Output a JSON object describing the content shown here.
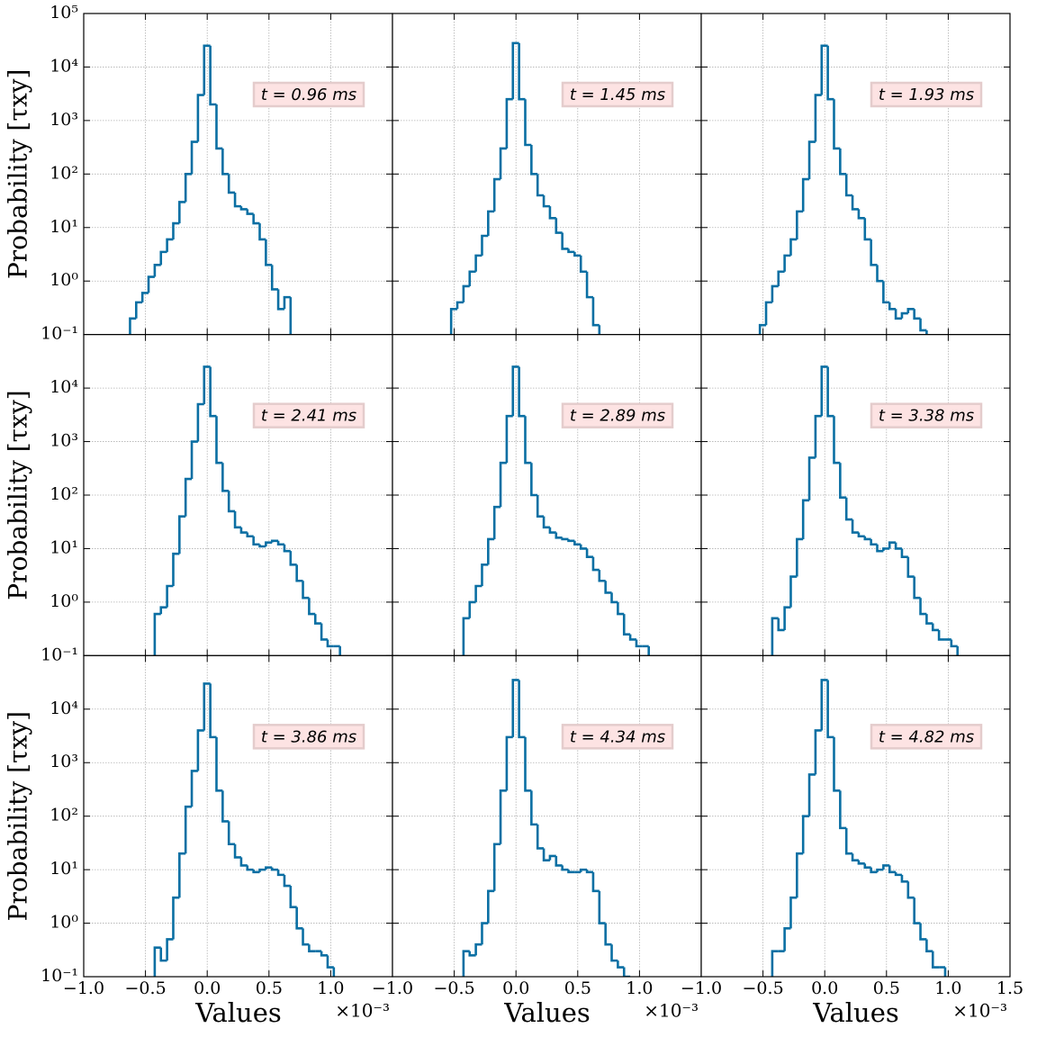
{
  "chart_data": [
    {
      "type": "histogram",
      "annotation": "t = 0.96 ms",
      "color": "#0a6fa3",
      "log_y": true,
      "grid": true,
      "xlim": [
        -1.0,
        1.5
      ],
      "ylim": [
        0.1,
        100000
      ],
      "ylabel": "Probability [τxy]",
      "yticks": [
        {
          "value": 0.1,
          "label": "10⁻¹"
        },
        {
          "value": 1,
          "label": "10⁰"
        },
        {
          "value": 10,
          "label": "10¹"
        },
        {
          "value": 100,
          "label": "10²"
        },
        {
          "value": 1000,
          "label": "10³"
        },
        {
          "value": 10000,
          "label": "10⁴"
        },
        {
          "value": 100000,
          "label": "10⁵"
        }
      ],
      "bins": [
        -0.625,
        -0.575,
        -0.525,
        -0.475,
        -0.425,
        -0.375,
        -0.325,
        -0.275,
        -0.225,
        -0.175,
        -0.125,
        -0.075,
        -0.025,
        0.025,
        0.075,
        0.125,
        0.175,
        0.225,
        0.275,
        0.325,
        0.375,
        0.425,
        0.475,
        0.525,
        0.575,
        0.625,
        0.675,
        0.725,
        0.775,
        0.825,
        0.875,
        0.925,
        0.975,
        1.025,
        1.075,
        1.125,
        1.175
      ],
      "values": [
        0.2,
        0.4,
        0.6,
        1.2,
        2,
        3.5,
        6,
        12,
        30,
        100,
        400,
        3000,
        25000,
        2000,
        300,
        100,
        45,
        25,
        22,
        18,
        12,
        6,
        2,
        0.7,
        0.3,
        0.5,
        0,
        0,
        0,
        0,
        0,
        0,
        0,
        0,
        0,
        0
      ]
    },
    {
      "type": "histogram",
      "annotation": "t = 1.45 ms",
      "color": "#0a6fa3",
      "log_y": true,
      "grid": true,
      "xlim": [
        -1.0,
        1.5
      ],
      "ylim": [
        0.1,
        100000
      ],
      "bins": [
        -0.625,
        -0.575,
        -0.525,
        -0.475,
        -0.425,
        -0.375,
        -0.325,
        -0.275,
        -0.225,
        -0.175,
        -0.125,
        -0.075,
        -0.025,
        0.025,
        0.075,
        0.125,
        0.175,
        0.225,
        0.275,
        0.325,
        0.375,
        0.425,
        0.475,
        0.525,
        0.575,
        0.625,
        0.675,
        0.725,
        0.775,
        0.825,
        0.875,
        0.925,
        0.975,
        1.025,
        1.075,
        1.125,
        1.175
      ],
      "values": [
        0,
        0,
        0.3,
        0.4,
        0.8,
        1.5,
        3,
        7,
        20,
        80,
        300,
        2500,
        28000,
        2500,
        350,
        100,
        40,
        25,
        15,
        8,
        4,
        3.5,
        3,
        1.5,
        0.5,
        0.15,
        0,
        0,
        0,
        0,
        0,
        0,
        0,
        0,
        0,
        0
      ]
    },
    {
      "type": "histogram",
      "annotation": "t = 1.93 ms",
      "color": "#0a6fa3",
      "log_y": true,
      "grid": true,
      "xlim": [
        -1.0,
        1.5
      ],
      "ylim": [
        0.1,
        100000
      ],
      "bins": [
        -0.625,
        -0.575,
        -0.525,
        -0.475,
        -0.425,
        -0.375,
        -0.325,
        -0.275,
        -0.225,
        -0.175,
        -0.125,
        -0.075,
        -0.025,
        0.025,
        0.075,
        0.125,
        0.175,
        0.225,
        0.275,
        0.325,
        0.375,
        0.425,
        0.475,
        0.525,
        0.575,
        0.625,
        0.675,
        0.725,
        0.775,
        0.825,
        0.875,
        0.925,
        0.975,
        1.025,
        1.075,
        1.125,
        1.175
      ],
      "values": [
        0,
        0,
        0.15,
        0.4,
        0.8,
        1.5,
        3,
        6,
        20,
        80,
        400,
        3000,
        25000,
        2500,
        300,
        100,
        40,
        22,
        15,
        6,
        2,
        1,
        0.4,
        0.3,
        0.2,
        0.25,
        0.3,
        0.2,
        0.12,
        0,
        0,
        0,
        0,
        0,
        0,
        0
      ]
    },
    {
      "type": "histogram",
      "annotation": "t = 2.41 ms",
      "color": "#0a6fa3",
      "log_y": true,
      "grid": true,
      "xlim": [
        -1.0,
        1.5
      ],
      "ylim": [
        0.1,
        100000
      ],
      "ylabel": "Probability [τxy]",
      "yticks": [
        {
          "value": 0.1,
          "label": "10⁻¹"
        },
        {
          "value": 1,
          "label": "10⁰"
        },
        {
          "value": 10,
          "label": "10¹"
        },
        {
          "value": 100,
          "label": "10²"
        },
        {
          "value": 1000,
          "label": "10³"
        },
        {
          "value": 10000,
          "label": "10⁴"
        }
      ],
      "bins": [
        -0.625,
        -0.575,
        -0.525,
        -0.475,
        -0.425,
        -0.375,
        -0.325,
        -0.275,
        -0.225,
        -0.175,
        -0.125,
        -0.075,
        -0.025,
        0.025,
        0.075,
        0.125,
        0.175,
        0.225,
        0.275,
        0.325,
        0.375,
        0.425,
        0.475,
        0.525,
        0.575,
        0.625,
        0.675,
        0.725,
        0.775,
        0.825,
        0.875,
        0.925,
        0.975,
        1.025,
        1.075,
        1.125,
        1.175
      ],
      "values": [
        0,
        0,
        0,
        0,
        0.6,
        0.8,
        2,
        8,
        40,
        200,
        1000,
        5000,
        25000,
        3000,
        400,
        120,
        50,
        25,
        20,
        17,
        12,
        11,
        13,
        14,
        12,
        9,
        5,
        2.5,
        1.2,
        0.6,
        0.4,
        0.2,
        0.15,
        0.15,
        0,
        0
      ]
    },
    {
      "type": "histogram",
      "annotation": "t = 2.89 ms",
      "color": "#0a6fa3",
      "log_y": true,
      "grid": true,
      "xlim": [
        -1.0,
        1.5
      ],
      "ylim": [
        0.1,
        100000
      ],
      "bins": [
        -0.625,
        -0.575,
        -0.525,
        -0.475,
        -0.425,
        -0.375,
        -0.325,
        -0.275,
        -0.225,
        -0.175,
        -0.125,
        -0.075,
        -0.025,
        0.025,
        0.075,
        0.125,
        0.175,
        0.225,
        0.275,
        0.325,
        0.375,
        0.425,
        0.475,
        0.525,
        0.575,
        0.625,
        0.675,
        0.725,
        0.775,
        0.825,
        0.875,
        0.925,
        0.975,
        1.025,
        1.075,
        1.125,
        1.175
      ],
      "values": [
        0,
        0,
        0,
        0,
        0.5,
        1,
        2,
        5,
        15,
        60,
        400,
        3000,
        25000,
        3000,
        400,
        100,
        40,
        25,
        20,
        16,
        15,
        14,
        12,
        10,
        7,
        4,
        2.5,
        1.5,
        1,
        0.6,
        0.25,
        0.2,
        0.15,
        0.15,
        0,
        0
      ]
    },
    {
      "type": "histogram",
      "annotation": "t = 3.38 ms",
      "color": "#0a6fa3",
      "log_y": true,
      "grid": true,
      "xlim": [
        -1.0,
        1.5
      ],
      "ylim": [
        0.1,
        100000
      ],
      "bins": [
        -0.625,
        -0.575,
        -0.525,
        -0.475,
        -0.425,
        -0.375,
        -0.325,
        -0.275,
        -0.225,
        -0.175,
        -0.125,
        -0.075,
        -0.025,
        0.025,
        0.075,
        0.125,
        0.175,
        0.225,
        0.275,
        0.325,
        0.375,
        0.425,
        0.475,
        0.525,
        0.575,
        0.625,
        0.675,
        0.725,
        0.775,
        0.825,
        0.875,
        0.925,
        0.975,
        1.025,
        1.075,
        1.125,
        1.175
      ],
      "values": [
        0,
        0,
        0,
        0,
        0.5,
        0.3,
        0.8,
        3,
        15,
        80,
        500,
        3000,
        25000,
        3000,
        400,
        90,
        35,
        20,
        17,
        15,
        12,
        9,
        10,
        13,
        10,
        7,
        3,
        1.2,
        0.6,
        0.4,
        0.3,
        0.2,
        0.2,
        0.15,
        0,
        0
      ]
    },
    {
      "type": "histogram",
      "annotation": "t = 3.86 ms",
      "color": "#0a6fa3",
      "log_y": true,
      "grid": true,
      "xlim": [
        -1.0,
        1.5
      ],
      "ylim": [
        0.1,
        100000
      ],
      "ylabel": "Probability [τxy]",
      "xlabel": "Values",
      "x_offset_label": "×10⁻³",
      "yticks": [
        {
          "value": 0.1,
          "label": "10⁻¹"
        },
        {
          "value": 1,
          "label": "10⁰"
        },
        {
          "value": 10,
          "label": "10¹"
        },
        {
          "value": 100,
          "label": "10²"
        },
        {
          "value": 1000,
          "label": "10³"
        },
        {
          "value": 10000,
          "label": "10⁴"
        }
      ],
      "xticks": [
        {
          "value": -1.0,
          "label": "−1.0"
        },
        {
          "value": -0.5,
          "label": "−0.5"
        },
        {
          "value": 0,
          "label": "0.0"
        },
        0.5,
        {
          "value": 1.0,
          "label": "1.0"
        }
      ],
      "bins": [
        -0.625,
        -0.575,
        -0.525,
        -0.475,
        -0.425,
        -0.375,
        -0.325,
        -0.275,
        -0.225,
        -0.175,
        -0.125,
        -0.075,
        -0.025,
        0.025,
        0.075,
        0.125,
        0.175,
        0.225,
        0.275,
        0.325,
        0.375,
        0.425,
        0.475,
        0.525,
        0.575,
        0.625,
        0.675,
        0.725,
        0.775,
        0.825,
        0.875,
        0.925,
        0.975,
        1.025,
        1.075,
        1.125,
        1.175
      ],
      "values": [
        0,
        0,
        0,
        0,
        0.35,
        0.2,
        0.5,
        3,
        20,
        150,
        700,
        4000,
        30000,
        3000,
        300,
        80,
        30,
        17,
        12,
        10,
        9,
        10,
        11,
        10,
        8,
        5,
        2,
        0.8,
        0.4,
        0.3,
        0.3,
        0.25,
        0.15,
        0,
        0,
        0
      ]
    },
    {
      "type": "histogram",
      "annotation": "t = 4.34 ms",
      "color": "#0a6fa3",
      "log_y": true,
      "grid": true,
      "xlim": [
        -1.0,
        1.5
      ],
      "ylim": [
        0.1,
        100000
      ],
      "xlabel": "Values",
      "x_offset_label": "×10⁻³",
      "xticks": [
        {
          "value": -1.0,
          "label": "−1.0"
        },
        {
          "value": -0.5,
          "label": "−0.5"
        },
        {
          "value": 0,
          "label": "0.0"
        },
        0.5,
        {
          "value": 1.0,
          "label": "1.0"
        }
      ],
      "bins": [
        -0.625,
        -0.575,
        -0.525,
        -0.475,
        -0.425,
        -0.375,
        -0.325,
        -0.275,
        -0.225,
        -0.175,
        -0.125,
        -0.075,
        -0.025,
        0.025,
        0.075,
        0.125,
        0.175,
        0.225,
        0.275,
        0.325,
        0.375,
        0.425,
        0.475,
        0.525,
        0.575,
        0.625,
        0.675,
        0.725,
        0.775,
        0.825,
        0.875,
        0.925,
        0.975,
        1.025,
        1.075,
        1.125,
        1.175
      ],
      "values": [
        0,
        0,
        0,
        0,
        0.3,
        0.25,
        0.4,
        1,
        4,
        30,
        300,
        3000,
        35000,
        3000,
        300,
        70,
        25,
        15,
        18,
        12,
        10,
        9,
        9,
        10,
        9,
        4,
        1,
        0.4,
        0.2,
        0.15,
        0.1,
        0,
        0,
        0,
        0,
        0
      ]
    },
    {
      "type": "histogram",
      "annotation": "t = 4.82 ms",
      "color": "#0a6fa3",
      "log_y": true,
      "grid": true,
      "xlim": [
        -1.0,
        1.5
      ],
      "ylim": [
        0.1,
        100000
      ],
      "xlabel": "Values",
      "x_offset_label": "×10⁻³",
      "xticks": [
        {
          "value": -1.0,
          "label": "−1.0"
        },
        {
          "value": -0.5,
          "label": "−0.5"
        },
        {
          "value": 0,
          "label": "0.0"
        },
        0.5,
        {
          "value": 1.0,
          "label": "1.0"
        },
        1.5
      ],
      "bins": [
        -0.625,
        -0.575,
        -0.525,
        -0.475,
        -0.425,
        -0.375,
        -0.325,
        -0.275,
        -0.225,
        -0.175,
        -0.125,
        -0.075,
        -0.025,
        0.025,
        0.075,
        0.125,
        0.175,
        0.225,
        0.275,
        0.325,
        0.375,
        0.425,
        0.475,
        0.525,
        0.575,
        0.625,
        0.675,
        0.725,
        0.775,
        0.825,
        0.875,
        0.925,
        0.975,
        1.025,
        1.075,
        1.125,
        1.175
      ],
      "values": [
        0,
        0,
        0,
        0,
        0.3,
        0.3,
        0.8,
        3,
        20,
        100,
        600,
        4000,
        35000,
        3000,
        300,
        60,
        20,
        15,
        13,
        11,
        9,
        10,
        12,
        9,
        8,
        6,
        3,
        1,
        0.5,
        0.3,
        0.15,
        0.15,
        0,
        0,
        0,
        0
      ]
    }
  ]
}
